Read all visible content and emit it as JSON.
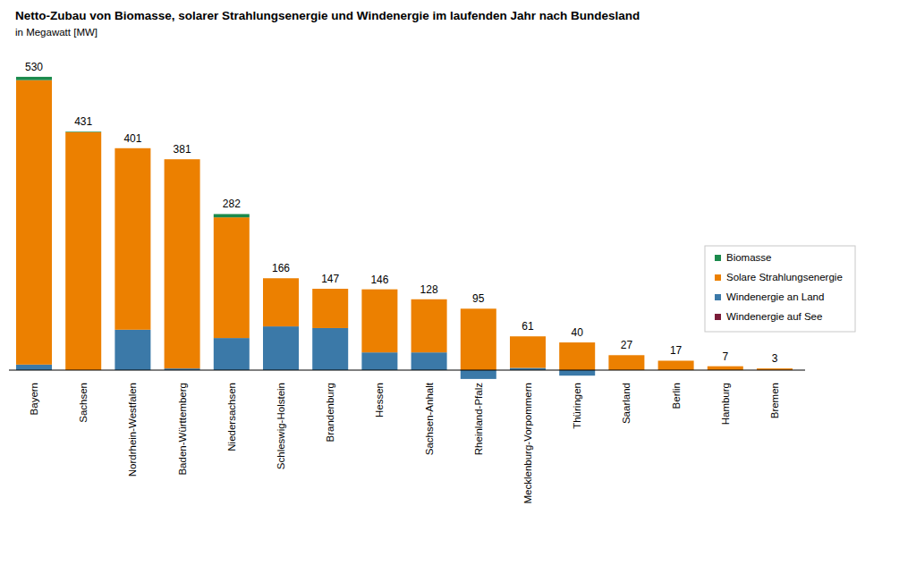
{
  "chart_data": {
    "type": "bar",
    "title": "Netto-Zubau von Biomasse, solarer Strahlungsenergie und Windenergie im laufenden Jahr nach Bundesland",
    "subtitle": "in Megawatt [MW]",
    "stacked": true,
    "legend": "right",
    "tick_labels": "x",
    "grid": false,
    "ylim": [
      -40,
      560
    ],
    "categories": [
      "Bayern",
      "Sachsen",
      "Nordrhein-Westfalen",
      "Baden-Württemberg",
      "Niedersachsen",
      "Schleswig-Holstein",
      "Brandenburg",
      "Hessen",
      "Sachsen-Anhalt",
      "Rheinland-Pfalz",
      "Mecklenburg-Vorpommern",
      "Thüringen",
      "Saarland",
      "Berlin",
      "Hamburg",
      "Bremen"
    ],
    "series": [
      {
        "name": "Biomasse",
        "color": "#1b8a4c",
        "values": [
          6,
          1,
          0,
          0,
          6,
          0,
          0,
          0,
          0,
          0,
          0,
          0,
          0,
          0,
          0,
          0
        ]
      },
      {
        "name": "Solare Strahlungsenergie",
        "color": "#ec8000",
        "values": [
          514,
          430,
          328,
          378,
          218,
          87,
          71,
          114,
          96,
          111,
          57,
          50,
          27,
          17,
          7,
          3
        ]
      },
      {
        "name": "Windenergie an Land",
        "color": "#3b79a8",
        "values": [
          10,
          0,
          73,
          3,
          58,
          79,
          76,
          32,
          32,
          -16,
          4,
          -10,
          0,
          0,
          0,
          0
        ]
      },
      {
        "name": "Windenergie auf See",
        "color": "#7a1c38",
        "values": [
          0,
          0,
          0,
          0,
          0,
          0,
          0,
          0,
          0,
          0,
          0,
          0,
          0,
          0,
          0,
          0
        ]
      }
    ],
    "totals": [
      530,
      431,
      401,
      381,
      282,
      166,
      147,
      146,
      128,
      95,
      61,
      40,
      27,
      17,
      7,
      3
    ]
  }
}
